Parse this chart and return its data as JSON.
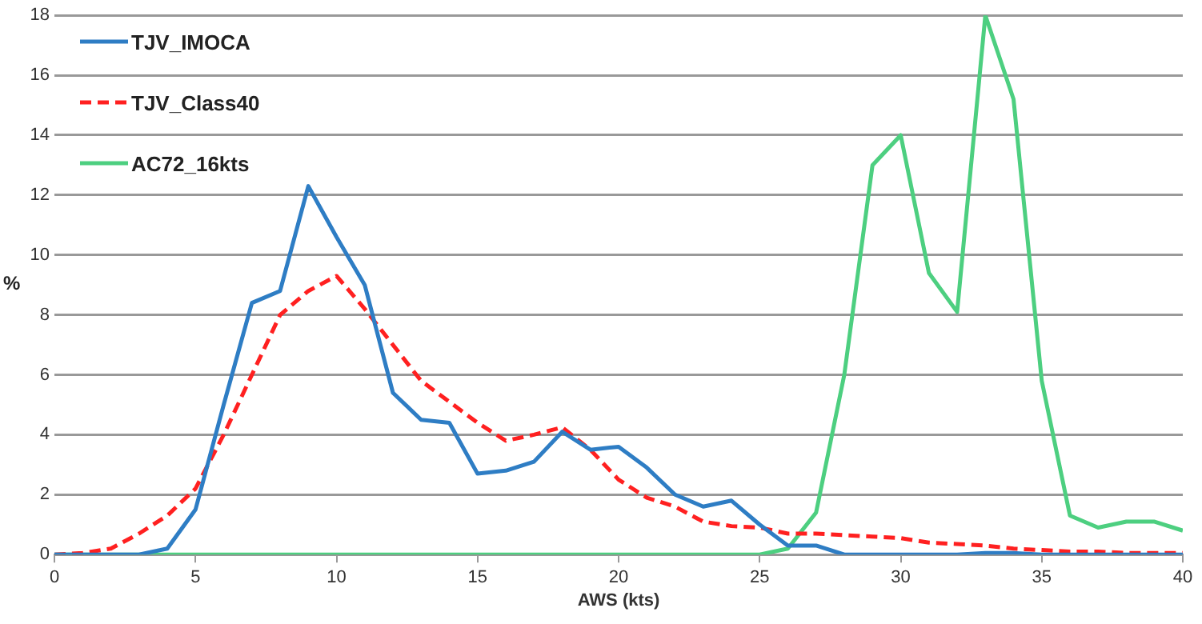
{
  "chart_data": {
    "type": "line",
    "xlabel": "AWS (kts)",
    "ylabel": "%",
    "x": [
      0,
      1,
      2,
      3,
      4,
      5,
      6,
      7,
      8,
      9,
      10,
      11,
      12,
      13,
      14,
      15,
      16,
      17,
      18,
      19,
      20,
      21,
      22,
      23,
      24,
      25,
      26,
      27,
      28,
      29,
      30,
      31,
      32,
      33,
      34,
      35,
      36,
      37,
      38,
      39,
      40
    ],
    "series": [
      {
        "name": "TJV_IMOCA",
        "color": "#2e7dc4",
        "line_style": "solid",
        "values": [
          0,
          0,
          0,
          0,
          0.2,
          1.5,
          5,
          8.4,
          8.8,
          12.3,
          10.6,
          9,
          5.4,
          4.5,
          4.4,
          2.7,
          2.8,
          3.1,
          4.1,
          3.5,
          3.6,
          2.9,
          2.0,
          1.6,
          1.8,
          1.0,
          0.3,
          0.3,
          0,
          0,
          0,
          0,
          0,
          0.05,
          0.05,
          0,
          0,
          0,
          0,
          0,
          0
        ]
      },
      {
        "name": "TJV_Class40",
        "color": "#ff2020",
        "line_style": "dashed",
        "values": [
          0,
          0.05,
          0.2,
          0.7,
          1.3,
          2.2,
          4,
          6,
          8,
          8.8,
          9.3,
          8.2,
          7,
          5.8,
          5.1,
          4.4,
          3.8,
          4.0,
          4.25,
          3.5,
          2.5,
          1.9,
          1.6,
          1.1,
          0.95,
          0.9,
          0.7,
          0.7,
          0.65,
          0.6,
          0.55,
          0.4,
          0.35,
          0.3,
          0.2,
          0.15,
          0.1,
          0.1,
          0.05,
          0.05,
          0.05
        ]
      },
      {
        "name": "AC72_16kts",
        "color": "#4dcf80",
        "line_style": "solid",
        "values": [
          0,
          0,
          0,
          0,
          0,
          0,
          0,
          0,
          0,
          0,
          0,
          0,
          0,
          0,
          0,
          0,
          0,
          0,
          0,
          0,
          0,
          0,
          0,
          0,
          0,
          0,
          0.2,
          1.4,
          6,
          13,
          14,
          9.4,
          8.1,
          18,
          15.2,
          5.8,
          1.3,
          0.9,
          1.1,
          1.1,
          0.8
        ]
      }
    ],
    "xlim": [
      0,
      40
    ],
    "xticks": [
      0,
      5,
      10,
      15,
      20,
      25,
      30,
      35,
      40
    ],
    "ylim": [
      0,
      18
    ],
    "yticks": [
      0,
      2,
      4,
      6,
      8,
      10,
      12,
      14,
      16,
      18
    ],
    "grid": "y",
    "legend": "top left",
    "marker": "none"
  }
}
